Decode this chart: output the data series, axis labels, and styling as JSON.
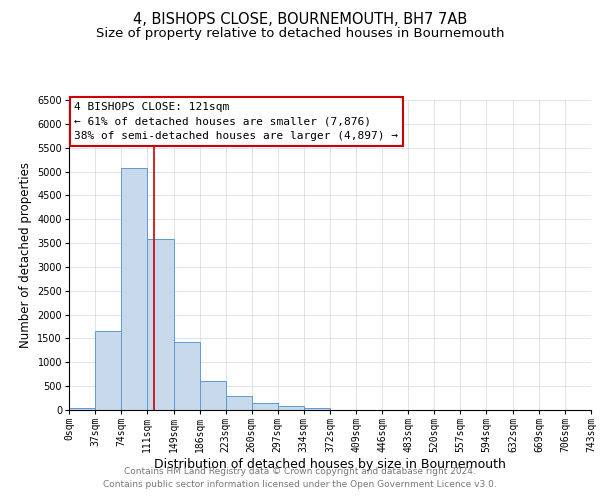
{
  "title": "4, BISHOPS CLOSE, BOURNEMOUTH, BH7 7AB",
  "subtitle": "Size of property relative to detached houses in Bournemouth",
  "xlabel": "Distribution of detached houses by size in Bournemouth",
  "ylabel": "Number of detached properties",
  "bar_values": [
    50,
    1650,
    5080,
    3580,
    1420,
    610,
    300,
    150,
    75,
    50,
    0,
    0,
    0,
    0,
    0,
    0,
    0,
    0,
    0,
    0
  ],
  "bin_edges": [
    0,
    37,
    74,
    111,
    149,
    186,
    223,
    260,
    297,
    334,
    372,
    409,
    446,
    483,
    520,
    557,
    594,
    632,
    669,
    706,
    743
  ],
  "x_tick_labels": [
    "0sqm",
    "37sqm",
    "74sqm",
    "111sqm",
    "149sqm",
    "186sqm",
    "223sqm",
    "260sqm",
    "297sqm",
    "334sqm",
    "372sqm",
    "409sqm",
    "446sqm",
    "483sqm",
    "520sqm",
    "557sqm",
    "594sqm",
    "632sqm",
    "669sqm",
    "706sqm",
    "743sqm"
  ],
  "bar_color": "#c9d9ec",
  "bar_edge_color": "#5b9bd5",
  "vline_x": 121,
  "vline_color": "#cc0000",
  "ylim": [
    0,
    6500
  ],
  "annotation_title": "4 BISHOPS CLOSE: 121sqm",
  "annotation_line1": "← 61% of detached houses are smaller (7,876)",
  "annotation_line2": "38% of semi-detached houses are larger (4,897) →",
  "annotation_box_color": "#ffffff",
  "annotation_box_edge_color": "#cc0000",
  "footer1": "Contains HM Land Registry data © Crown copyright and database right 2024.",
  "footer2": "Contains public sector information licensed under the Open Government Licence v3.0.",
  "background_color": "#ffffff",
  "grid_color": "#d0d8e8",
  "title_fontsize": 10.5,
  "subtitle_fontsize": 9.5,
  "xlabel_fontsize": 9,
  "ylabel_fontsize": 8.5,
  "tick_fontsize": 7,
  "annotation_fontsize": 8,
  "footer_fontsize": 6.5
}
